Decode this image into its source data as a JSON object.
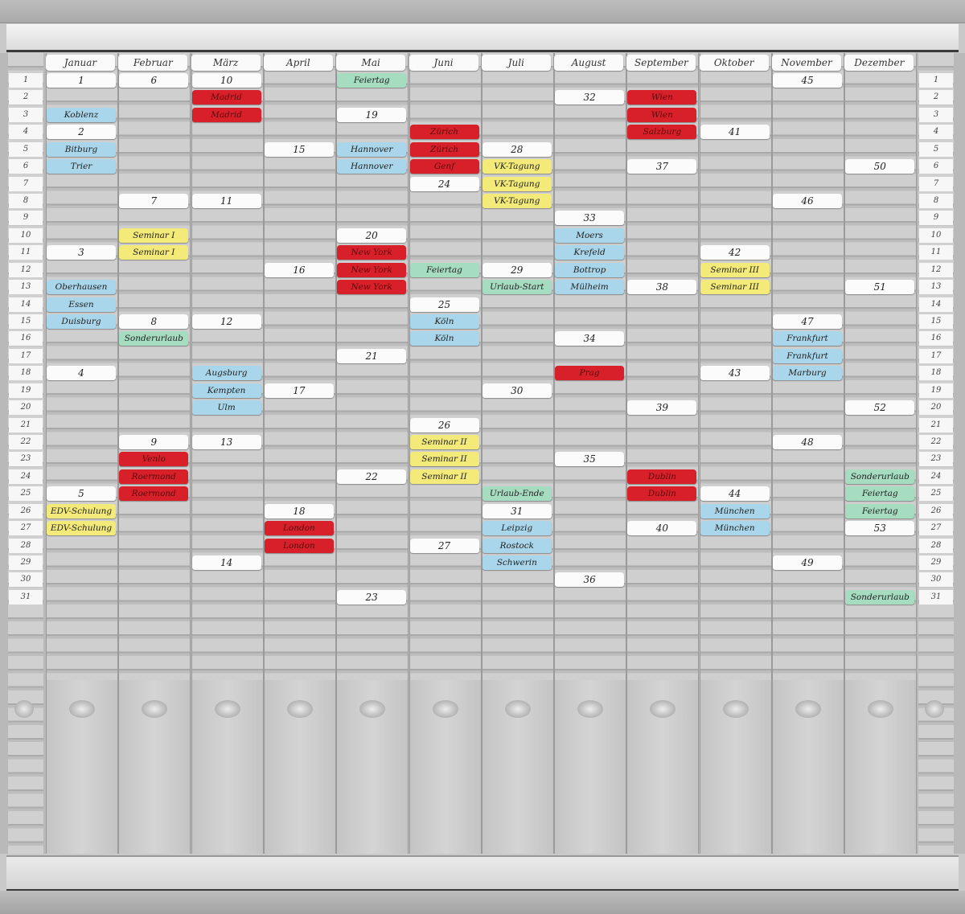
{
  "colors": {
    "white": "#fbfbfb",
    "blue": "#a9d6ea",
    "red": "#d8202a",
    "yellow": "#f3ea7a",
    "green": "#a6dcc0"
  },
  "row_labels": [
    "1",
    "2",
    "3",
    "4",
    "5",
    "6",
    "7",
    "8",
    "9",
    "10",
    "11",
    "12",
    "13",
    "14",
    "15",
    "16",
    "17",
    "18",
    "19",
    "20",
    "21",
    "22",
    "23",
    "24",
    "25",
    "26",
    "27",
    "28",
    "29",
    "30",
    "31"
  ],
  "months": [
    {
      "name": "Januar",
      "cards": [
        [
          1,
          "1",
          "white"
        ],
        [
          3,
          "Koblenz",
          "blue"
        ],
        [
          4,
          "2",
          "white"
        ],
        [
          5,
          "Bitburg",
          "blue"
        ],
        [
          6,
          "Trier",
          "blue"
        ],
        [
          11,
          "3",
          "white"
        ],
        [
          13,
          "Oberhausen",
          "blue"
        ],
        [
          14,
          "Essen",
          "blue"
        ],
        [
          15,
          "Duisburg",
          "blue"
        ],
        [
          18,
          "4",
          "white"
        ],
        [
          25,
          "5",
          "white"
        ],
        [
          26,
          "EDV-Schulung",
          "yellow"
        ],
        [
          27,
          "EDV-Schulung",
          "yellow"
        ]
      ]
    },
    {
      "name": "Februar",
      "cards": [
        [
          1,
          "6",
          "white"
        ],
        [
          8,
          "7",
          "white"
        ],
        [
          10,
          "Seminar I",
          "yellow"
        ],
        [
          11,
          "Seminar I",
          "yellow"
        ],
        [
          15,
          "8",
          "white"
        ],
        [
          16,
          "Sonderurlaub",
          "green"
        ],
        [
          22,
          "9",
          "white"
        ],
        [
          23,
          "Venlo",
          "red"
        ],
        [
          24,
          "Roermond",
          "red"
        ],
        [
          25,
          "Roermond",
          "red"
        ]
      ]
    },
    {
      "name": "März",
      "cards": [
        [
          1,
          "10",
          "white"
        ],
        [
          2,
          "Madrid",
          "red"
        ],
        [
          3,
          "Madrid",
          "red"
        ],
        [
          8,
          "11",
          "white"
        ],
        [
          15,
          "12",
          "white"
        ],
        [
          18,
          "Augsburg",
          "blue"
        ],
        [
          19,
          "Kempten",
          "blue"
        ],
        [
          20,
          "Ulm",
          "blue"
        ],
        [
          22,
          "13",
          "white"
        ],
        [
          29,
          "14",
          "white"
        ]
      ]
    },
    {
      "name": "April",
      "cards": [
        [
          5,
          "15",
          "white"
        ],
        [
          12,
          "16",
          "white"
        ],
        [
          19,
          "17",
          "white"
        ],
        [
          26,
          "18",
          "white"
        ],
        [
          27,
          "London",
          "red"
        ],
        [
          28,
          "London",
          "red"
        ]
      ]
    },
    {
      "name": "Mai",
      "cards": [
        [
          1,
          "Feiertag",
          "green"
        ],
        [
          3,
          "19",
          "white"
        ],
        [
          5,
          "Hannover",
          "blue"
        ],
        [
          6,
          "Hannover",
          "blue"
        ],
        [
          10,
          "20",
          "white"
        ],
        [
          11,
          "New York",
          "red"
        ],
        [
          12,
          "New York",
          "red"
        ],
        [
          13,
          "New York",
          "red"
        ],
        [
          17,
          "21",
          "white"
        ],
        [
          24,
          "22",
          "white"
        ],
        [
          31,
          "23",
          "white"
        ]
      ]
    },
    {
      "name": "Juni",
      "cards": [
        [
          4,
          "Zürich",
          "red"
        ],
        [
          5,
          "Zürich",
          "red"
        ],
        [
          6,
          "Genf",
          "red"
        ],
        [
          7,
          "24",
          "white"
        ],
        [
          12,
          "Feiertag",
          "green"
        ],
        [
          14,
          "25",
          "white"
        ],
        [
          15,
          "Köln",
          "blue"
        ],
        [
          16,
          "Köln",
          "blue"
        ],
        [
          21,
          "26",
          "white"
        ],
        [
          22,
          "Seminar II",
          "yellow"
        ],
        [
          23,
          "Seminar II",
          "yellow"
        ],
        [
          24,
          "Seminar II",
          "yellow"
        ],
        [
          28,
          "27",
          "white"
        ]
      ]
    },
    {
      "name": "Juli",
      "cards": [
        [
          5,
          "28",
          "white"
        ],
        [
          6,
          "VK-Tagung",
          "yellow"
        ],
        [
          7,
          "VK-Tagung",
          "yellow"
        ],
        [
          8,
          "VK-Tagung",
          "yellow"
        ],
        [
          12,
          "29",
          "white"
        ],
        [
          13,
          "Urlaub-Start",
          "green"
        ],
        [
          19,
          "30",
          "white"
        ],
        [
          25,
          "Urlaub-Ende",
          "green"
        ],
        [
          26,
          "31",
          "white"
        ],
        [
          27,
          "Leipzig",
          "blue"
        ],
        [
          28,
          "Rostock",
          "blue"
        ],
        [
          29,
          "Schwerin",
          "blue"
        ]
      ]
    },
    {
      "name": "August",
      "cards": [
        [
          2,
          "32",
          "white"
        ],
        [
          9,
          "33",
          "white"
        ],
        [
          10,
          "Moers",
          "blue"
        ],
        [
          11,
          "Krefeld",
          "blue"
        ],
        [
          12,
          "Bottrop",
          "blue"
        ],
        [
          13,
          "Mülheim",
          "blue"
        ],
        [
          16,
          "34",
          "white"
        ],
        [
          18,
          "Prag",
          "red"
        ],
        [
          23,
          "35",
          "white"
        ],
        [
          30,
          "36",
          "white"
        ]
      ]
    },
    {
      "name": "September",
      "cards": [
        [
          2,
          "Wien",
          "red"
        ],
        [
          3,
          "Wien",
          "red"
        ],
        [
          4,
          "Salzburg",
          "red"
        ],
        [
          6,
          "37",
          "white"
        ],
        [
          13,
          "38",
          "white"
        ],
        [
          20,
          "39",
          "white"
        ],
        [
          24,
          "Dublin",
          "red"
        ],
        [
          25,
          "Dublin",
          "red"
        ],
        [
          27,
          "40",
          "white"
        ]
      ]
    },
    {
      "name": "Oktober",
      "cards": [
        [
          4,
          "41",
          "white"
        ],
        [
          11,
          "42",
          "white"
        ],
        [
          12,
          "Seminar III",
          "yellow"
        ],
        [
          13,
          "Seminar III",
          "yellow"
        ],
        [
          18,
          "43",
          "white"
        ],
        [
          25,
          "44",
          "white"
        ],
        [
          26,
          "München",
          "blue"
        ],
        [
          27,
          "München",
          "blue"
        ]
      ]
    },
    {
      "name": "November",
      "cards": [
        [
          1,
          "45",
          "white"
        ],
        [
          8,
          "46",
          "white"
        ],
        [
          15,
          "47",
          "white"
        ],
        [
          16,
          "Frankfurt",
          "blue"
        ],
        [
          17,
          "Frankfurt",
          "blue"
        ],
        [
          18,
          "Marburg",
          "blue"
        ],
        [
          22,
          "48",
          "white"
        ],
        [
          29,
          "49",
          "white"
        ]
      ]
    },
    {
      "name": "Dezember",
      "cards": [
        [
          6,
          "50",
          "white"
        ],
        [
          13,
          "51",
          "white"
        ],
        [
          20,
          "52",
          "white"
        ],
        [
          24,
          "Sonderurlaub",
          "green"
        ],
        [
          25,
          "Feiertag",
          "green"
        ],
        [
          26,
          "Feiertag",
          "green"
        ],
        [
          27,
          "53",
          "white"
        ],
        [
          31,
          "Sonderurlaub",
          "green"
        ]
      ]
    }
  ]
}
